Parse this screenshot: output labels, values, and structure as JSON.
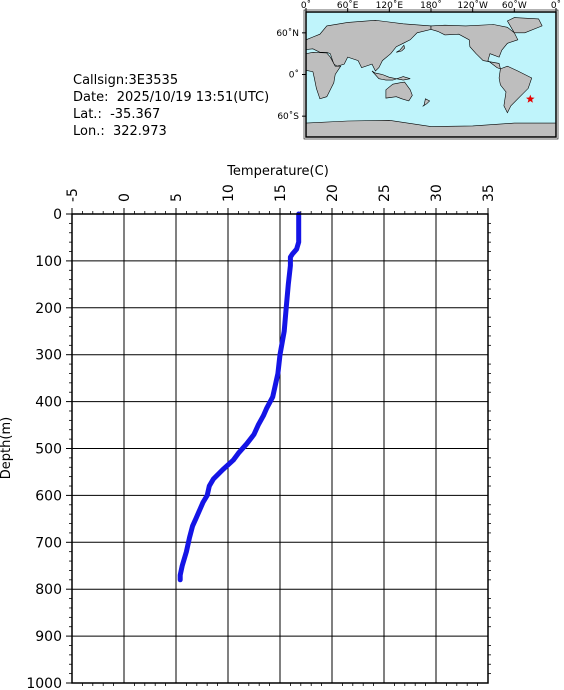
{
  "info": {
    "callsign": "Callsign:3E3535",
    "date": "Date:  2025/10/19 13:51(UTC)",
    "lat": "Lat.:  -35.367",
    "lon": "Lon.:  322.973"
  },
  "map": {
    "lon_labels": [
      "0˚",
      "60˚E",
      "120˚E",
      "180˚",
      "120˚W",
      "60˚W",
      "0˚"
    ],
    "lat_labels": [
      "60˚N",
      "0˚",
      "60˚S"
    ],
    "ocean_color": "#bff4fb",
    "land_color": "#bebebe",
    "marker": {
      "lat": -35.367,
      "lon": 322.973,
      "symbol": "star",
      "color": "#e60000"
    }
  },
  "chart_data": {
    "type": "line",
    "xlabel": "Temperature(C)",
    "ylabel": "Depth(m)",
    "xlim": [
      -5,
      35
    ],
    "ylim": [
      0,
      1000
    ],
    "x_axis_position": "top",
    "y_axis_inverted": true,
    "grid": true,
    "x_ticks": [
      -5,
      0,
      5,
      10,
      15,
      20,
      25,
      30,
      35
    ],
    "y_ticks": [
      0,
      100,
      200,
      300,
      400,
      500,
      600,
      700,
      800,
      900,
      1000
    ],
    "series": [
      {
        "color": "#1414e6",
        "points": [
          [
            16.8,
            0
          ],
          [
            16.8,
            20
          ],
          [
            16.8,
            60
          ],
          [
            16.6,
            75
          ],
          [
            16.2,
            85
          ],
          [
            16.0,
            92
          ],
          [
            16.0,
            110
          ],
          [
            15.8,
            150
          ],
          [
            15.6,
            200
          ],
          [
            15.4,
            250
          ],
          [
            15.0,
            300
          ],
          [
            14.8,
            340
          ],
          [
            14.5,
            370
          ],
          [
            14.3,
            390
          ],
          [
            13.7,
            415
          ],
          [
            13.4,
            430
          ],
          [
            12.9,
            450
          ],
          [
            12.5,
            470
          ],
          [
            11.8,
            490
          ],
          [
            11.0,
            510
          ],
          [
            10.5,
            525
          ],
          [
            9.5,
            545
          ],
          [
            8.6,
            565
          ],
          [
            8.2,
            580
          ],
          [
            8.0,
            600
          ],
          [
            7.6,
            615
          ],
          [
            7.2,
            635
          ],
          [
            6.9,
            650
          ],
          [
            6.6,
            665
          ],
          [
            6.3,
            690
          ],
          [
            6.0,
            720
          ],
          [
            5.6,
            750
          ],
          [
            5.4,
            770
          ],
          [
            5.4,
            780
          ]
        ]
      }
    ]
  }
}
